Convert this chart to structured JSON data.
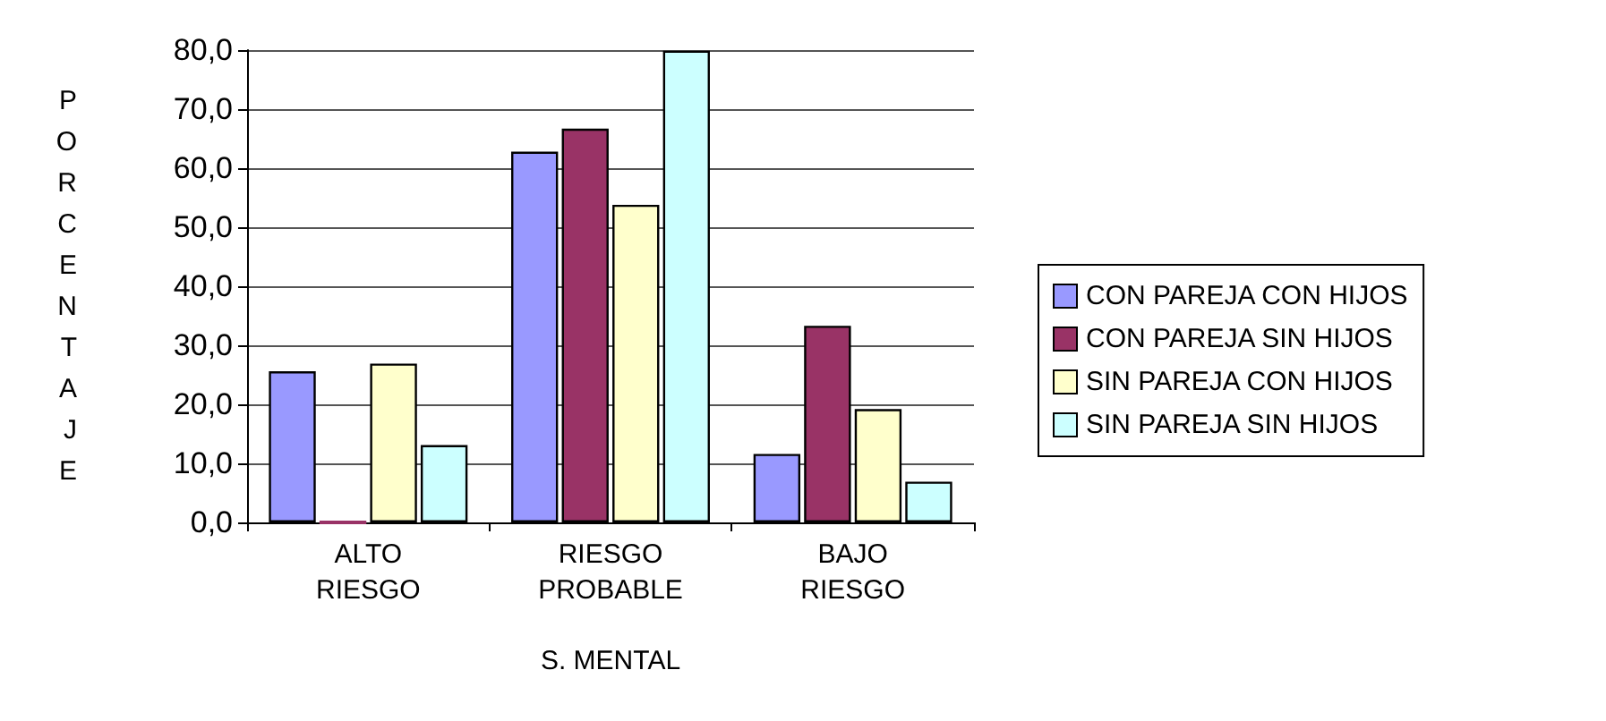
{
  "chart_data": {
    "type": "bar",
    "xlabel": "S. MENTAL",
    "ylabel": "PORCENTAJE",
    "categories": [
      "ALTO\nRIESGO",
      "RIESGO\nPROBABLE",
      "BAJO\nRIESGO"
    ],
    "series": [
      {
        "name": "CON PAREJA CON HIJOS",
        "color": "#9999ff",
        "values": [
          25.6,
          62.8,
          11.6
        ]
      },
      {
        "name": "CON PAREJA SIN HIJOS",
        "color": "#993366",
        "values": [
          0,
          66.7,
          33.3
        ]
      },
      {
        "name": "SIN PAREJA CON HIJOS",
        "color": "#ffffcc",
        "values": [
          26.9,
          53.8,
          19.2
        ]
      },
      {
        "name": "SIN PAREJA SIN HIJOS",
        "color": "#ccffff",
        "values": [
          13.1,
          79.9,
          6.9
        ]
      }
    ],
    "ylim": [
      0,
      80
    ],
    "yticks": [
      {
        "value": 0,
        "label": "0,0"
      },
      {
        "value": 10,
        "label": "10,0"
      },
      {
        "value": 20,
        "label": "20,0"
      },
      {
        "value": 30,
        "label": "30,0"
      },
      {
        "value": 40,
        "label": "40,0"
      },
      {
        "value": 50,
        "label": "50,0"
      },
      {
        "value": 60,
        "label": "60,0"
      },
      {
        "value": 70,
        "label": "70,0"
      },
      {
        "value": 80,
        "label": "80,0"
      }
    ],
    "grid": "y",
    "legend": "right"
  }
}
